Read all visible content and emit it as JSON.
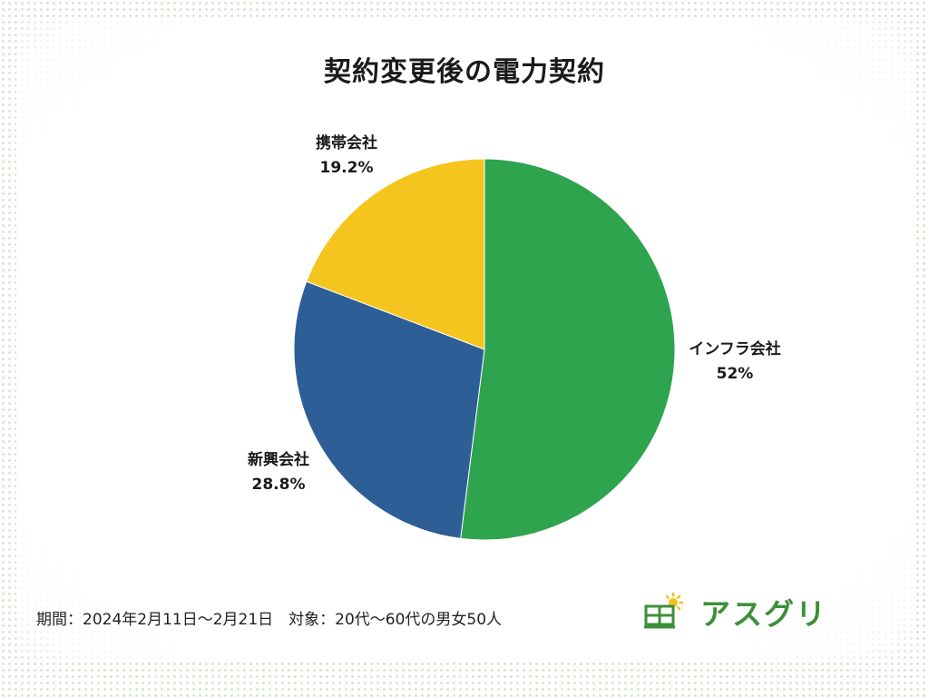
{
  "chart_data": {
    "type": "pie",
    "title": "契約変更後の電力契約",
    "slices": [
      {
        "name": "インフラ会社",
        "value": 52,
        "label": "52%",
        "color": "#2ea44f"
      },
      {
        "name": "新興会社",
        "value": 28.8,
        "label": "28.8%",
        "color": "#2d5e96"
      },
      {
        "name": "携帯会社",
        "value": 19.2,
        "label": "19.2%",
        "color": "#f5c51f"
      }
    ],
    "start": "12 o'clock",
    "direction": "clockwise"
  },
  "footer": {
    "period_note": "期間：2024年2月11日〜2月21日　対象：20代〜60代の男女50人"
  },
  "logo": {
    "text": "アスグリ",
    "icon": "solar-panel-sun-icon",
    "panel_color": "#3f8f3a",
    "sun_color": "#f2c21b",
    "text_color": "#3f8f3a"
  }
}
